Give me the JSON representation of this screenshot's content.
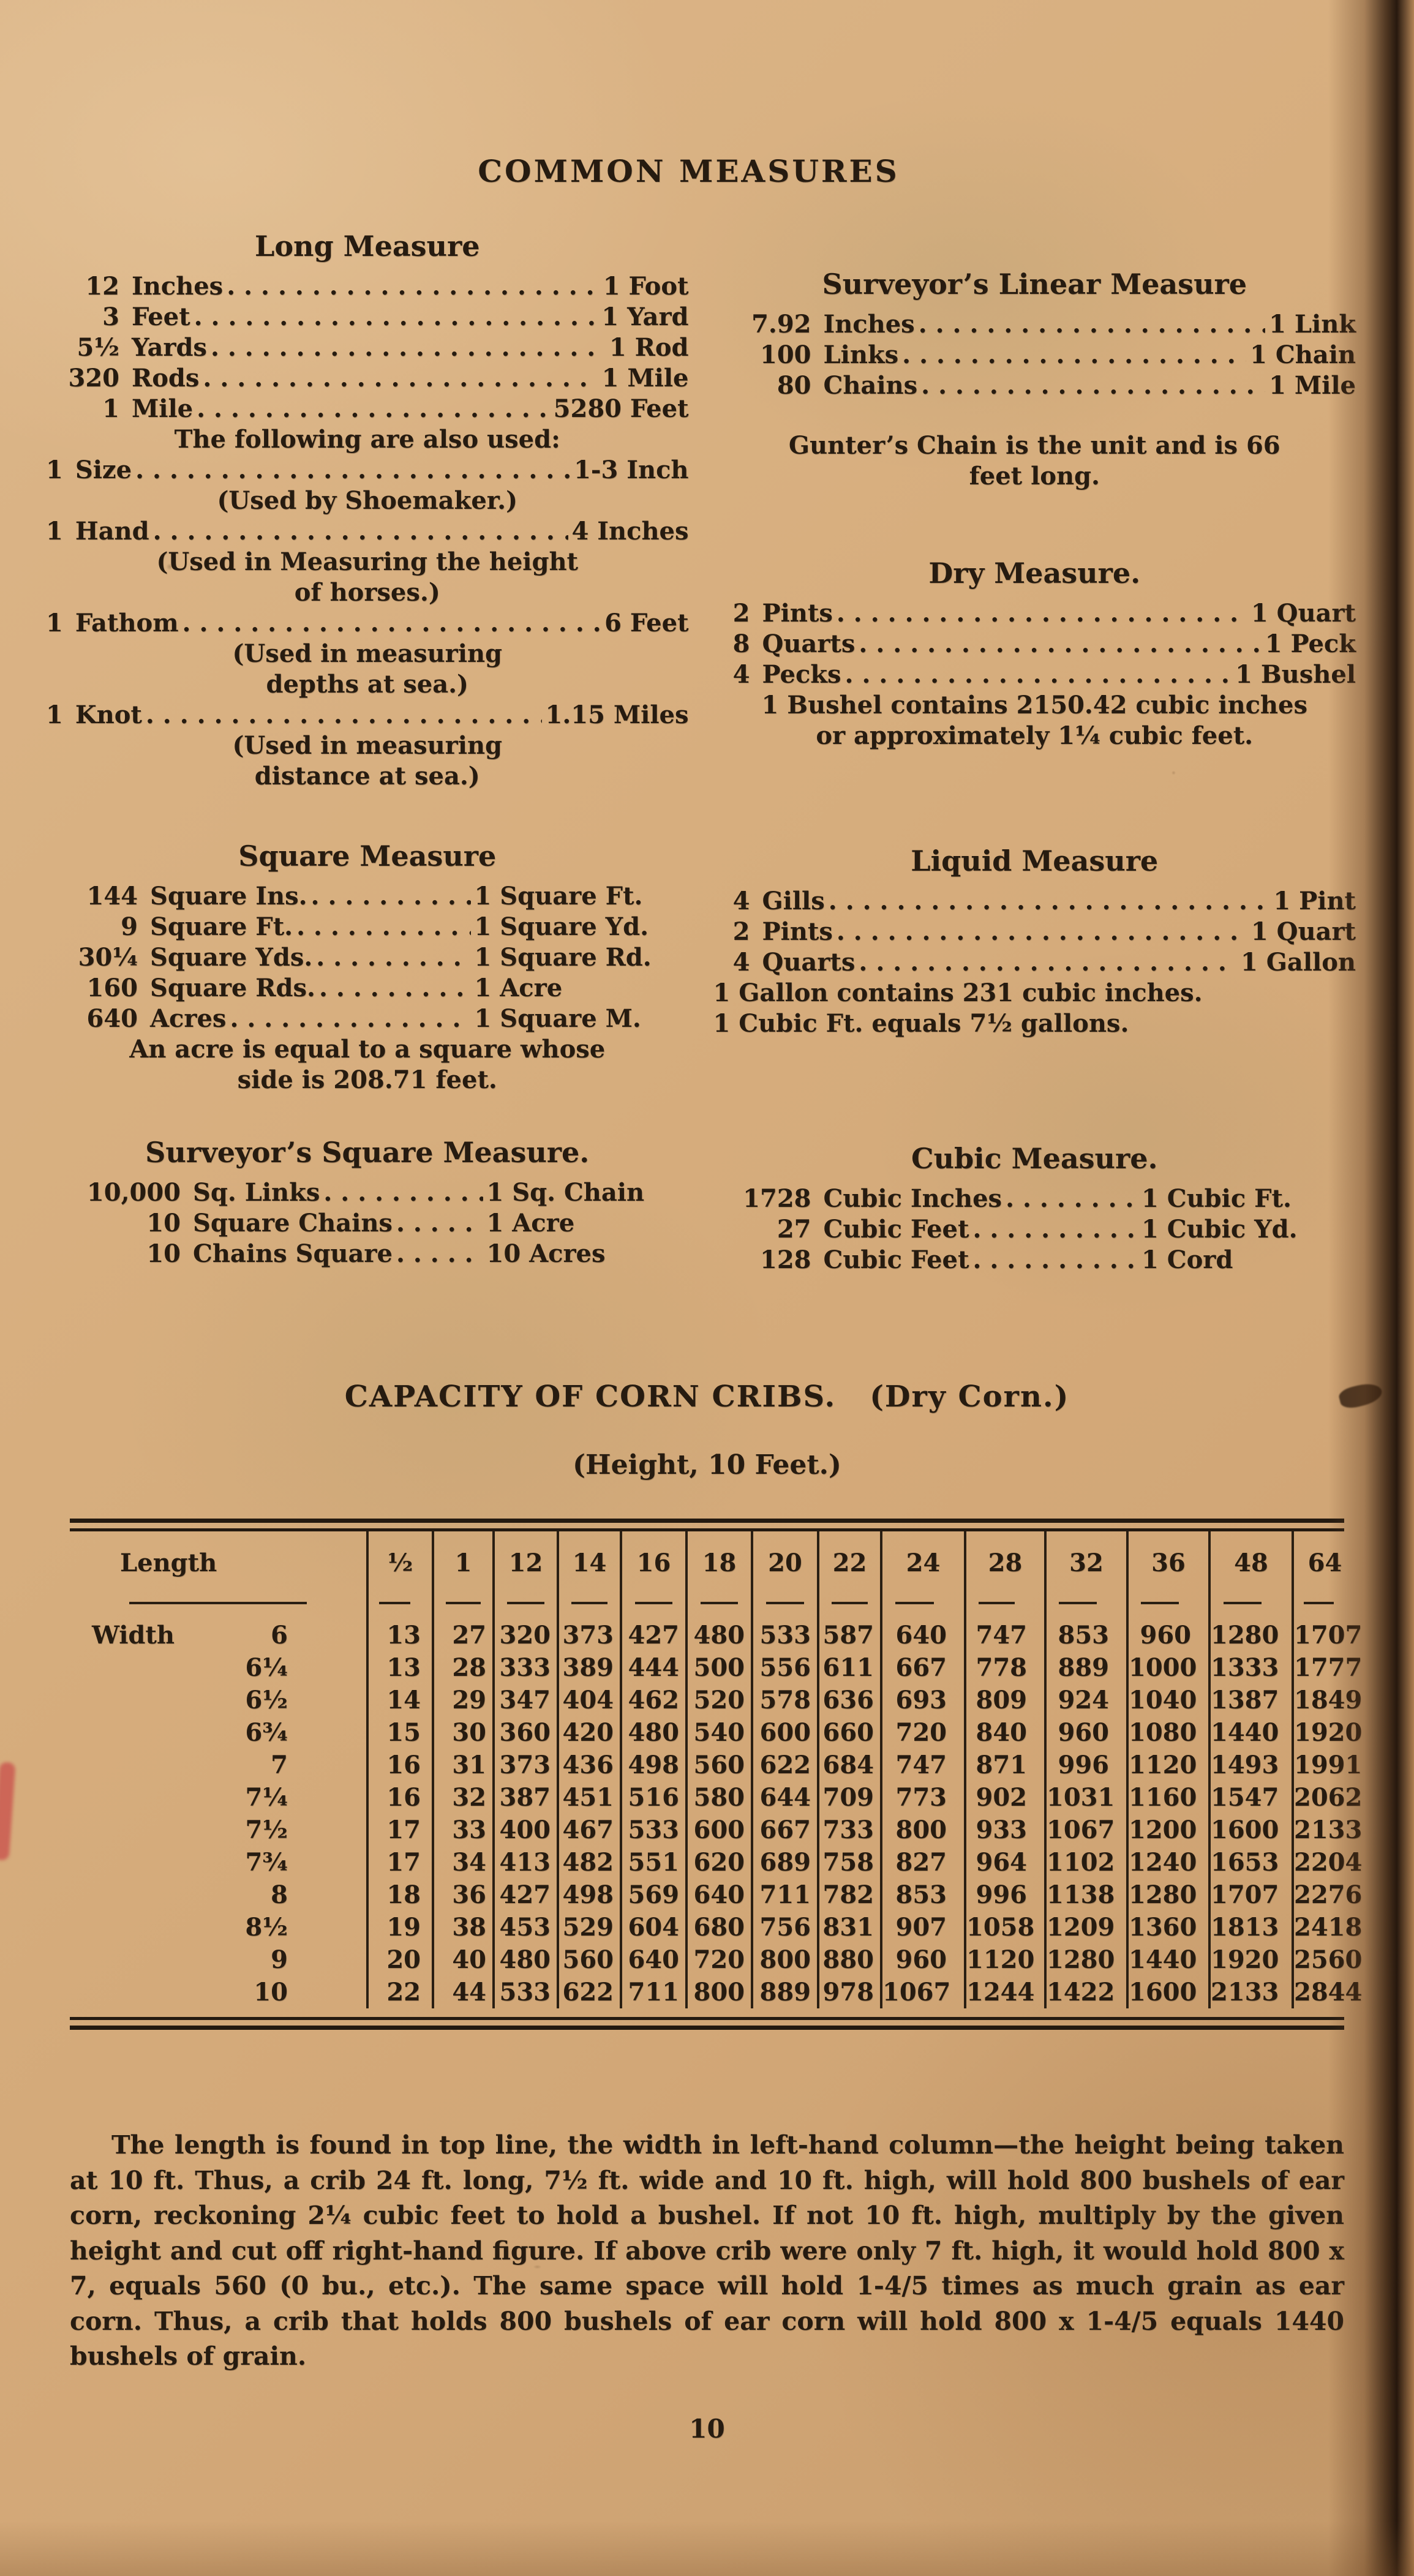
{
  "page": {
    "title": "COMMON MEASURES",
    "page_number": "10"
  },
  "columns": {
    "left": [
      {
        "id": "long",
        "heading": "Long Measure",
        "items": [
          {
            "num": "12",
            "label": "Inches",
            "value": "1 Foot"
          },
          {
            "num": "3",
            "label": "Feet",
            "value": "1 Yard"
          },
          {
            "num": "5½",
            "label": "Yards",
            "value": "1 Rod"
          },
          {
            "num": "320",
            "label": "Rods",
            "value": "1 Mile"
          },
          {
            "num": "1",
            "label": "Mile",
            "value": "5280 Feet"
          },
          {
            "note": [
              "The following are also used:"
            ],
            "align": "center"
          },
          {
            "num": "1",
            "label": "Size",
            "value": "1-3 Inch",
            "flush": true
          },
          {
            "note": [
              "(Used by Shoemaker.)"
            ],
            "align": "center"
          },
          {
            "num": "1",
            "label": "Hand",
            "value": "4 Inches",
            "flush": true
          },
          {
            "note": [
              "(Used in Measuring the height",
              "of horses.)"
            ],
            "align": "center"
          },
          {
            "num": "1",
            "label": "Fathom",
            "value": "6 Feet",
            "flush": true
          },
          {
            "note": [
              "(Used in measuring",
              "depths at sea.)"
            ],
            "align": "center"
          },
          {
            "num": "1",
            "label": "Knot",
            "value": "1.15 Miles",
            "flush": true
          },
          {
            "note": [
              "(Used in measuring",
              "distance at sea.)"
            ],
            "align": "center"
          }
        ]
      },
      {
        "id": "square",
        "heading": "Square Measure",
        "items": [
          {
            "num": "144",
            "label": "Square Ins.",
            "value": "1 Square Ft."
          },
          {
            "num": "9",
            "label": "Square Ft.",
            "value": "1 Square Yd."
          },
          {
            "num": "30¼",
            "label": "Square Yds.",
            "value": "1 Square Rd."
          },
          {
            "num": "160",
            "label": "Square Rds.",
            "value": "1 Acre"
          },
          {
            "num": "640",
            "label": "Acres",
            "value": "1 Square M."
          },
          {
            "note": [
              "An acre is equal to a square whose",
              "side is 208.71 feet."
            ],
            "align": "center"
          }
        ]
      },
      {
        "id": "surv-sq",
        "heading": "Surveyor’s Square Measure.",
        "items": [
          {
            "num": "10,000",
            "label": "Sq. Links",
            "value": "1 Sq. Chain"
          },
          {
            "num": "10",
            "label": "Square Chains",
            "value": "1 Acre"
          },
          {
            "num": "10",
            "label": "Chains Square",
            "value": "10 Acres"
          }
        ]
      }
    ],
    "right": [
      {
        "id": "linear",
        "heading": "Surveyor’s Linear Measure",
        "items": [
          {
            "num": "7.92",
            "label": "Inches",
            "value": "1 Link"
          },
          {
            "num": "100",
            "label": "Links",
            "value": "1 Chain"
          },
          {
            "num": "80",
            "label": "Chains",
            "value": "1 Mile"
          },
          {
            "note": [
              "Gunter’s Chain is the unit and is 66",
              "feet long."
            ],
            "align": "center"
          }
        ]
      },
      {
        "id": "dry",
        "heading": "Dry Measure.",
        "items": [
          {
            "num": "2",
            "label": "Pints",
            "value": "1 Quart"
          },
          {
            "num": "8",
            "label": "Quarts",
            "value": "1 Peck"
          },
          {
            "num": "4",
            "label": "Pecks",
            "value": "1 Bushel"
          },
          {
            "note": [
              "1 Bushel contains 2150.42 cubic inches",
              "or approximately 1¼ cubic feet."
            ],
            "align": "center"
          }
        ]
      },
      {
        "id": "liquid",
        "heading": "Liquid Measure",
        "items": [
          {
            "num": "4",
            "label": "Gills",
            "value": "1 Pint"
          },
          {
            "num": "2",
            "label": "Pints",
            "value": "1 Quart"
          },
          {
            "num": "4",
            "label": "Quarts",
            "value": "1 Gallon"
          },
          {
            "note": [
              "1 Gallon contains 231 cubic inches.",
              "1 Cubic Ft. equals 7½ gallons."
            ],
            "align": "left"
          }
        ]
      },
      {
        "id": "cubic",
        "heading": "Cubic Measure.",
        "items": [
          {
            "num": "1728",
            "label": "Cubic Inches",
            "value": "1 Cubic Ft."
          },
          {
            "num": "27",
            "label": "Cubic Feet",
            "value": "1 Cubic Yd."
          },
          {
            "num": "128",
            "label": "Cubic Feet",
            "value": "1 Cord"
          }
        ]
      }
    ]
  },
  "corn_cribs": {
    "title": "CAPACITY OF CORN CRIBS.",
    "title_suffix": "(Dry Corn.)",
    "subtitle": "(Height, 10 Feet.)",
    "table": {
      "row_label_prefix": "Width",
      "columns": [
        "Length",
        "½",
        "1",
        "12",
        "14",
        "16",
        "18",
        "20",
        "22",
        "24",
        "28",
        "32",
        "36",
        "48",
        "64"
      ],
      "rows": [
        {
          "width": "6",
          "values": [
            13,
            27,
            320,
            373,
            427,
            480,
            533,
            587,
            640,
            747,
            853,
            960,
            1280,
            1707
          ]
        },
        {
          "width": "6¼",
          "values": [
            13,
            28,
            333,
            389,
            444,
            500,
            556,
            611,
            667,
            778,
            889,
            1000,
            1333,
            1777
          ]
        },
        {
          "width": "6½",
          "values": [
            14,
            29,
            347,
            404,
            462,
            520,
            578,
            636,
            693,
            809,
            924,
            1040,
            1387,
            1849
          ]
        },
        {
          "width": "6¾",
          "values": [
            15,
            30,
            360,
            420,
            480,
            540,
            600,
            660,
            720,
            840,
            960,
            1080,
            1440,
            1920
          ]
        },
        {
          "width": "7",
          "values": [
            16,
            31,
            373,
            436,
            498,
            560,
            622,
            684,
            747,
            871,
            996,
            1120,
            1493,
            1991
          ]
        },
        {
          "width": "7¼",
          "values": [
            16,
            32,
            387,
            451,
            516,
            580,
            644,
            709,
            773,
            902,
            1031,
            1160,
            1547,
            2062
          ]
        },
        {
          "width": "7½",
          "values": [
            17,
            33,
            400,
            467,
            533,
            600,
            667,
            733,
            800,
            933,
            1067,
            1200,
            1600,
            2133
          ]
        },
        {
          "width": "7¾",
          "values": [
            17,
            34,
            413,
            482,
            551,
            620,
            689,
            758,
            827,
            964,
            1102,
            1240,
            1653,
            2204
          ]
        },
        {
          "width": "8",
          "values": [
            18,
            36,
            427,
            498,
            569,
            640,
            711,
            782,
            853,
            996,
            1138,
            1280,
            1707,
            2276
          ]
        },
        {
          "width": "8½",
          "values": [
            19,
            38,
            453,
            529,
            604,
            680,
            756,
            831,
            907,
            1058,
            1209,
            1360,
            1813,
            2418
          ]
        },
        {
          "width": "9",
          "values": [
            20,
            40,
            480,
            560,
            640,
            720,
            800,
            880,
            960,
            1120,
            1280,
            1440,
            1920,
            2560
          ]
        },
        {
          "width": "10",
          "values": [
            22,
            44,
            533,
            622,
            711,
            800,
            889,
            978,
            1067,
            1244,
            1422,
            1600,
            2133,
            2844
          ]
        }
      ]
    },
    "footnote": "The length is found in top line, the width in left-hand column—the height being taken at 10 ft.  Thus, a crib 24 ft. long, 7½ ft. wide and 10 ft. high, will hold 800 bushels of ear corn, reckoning 2¼ cubic feet to hold a bushel.  If not 10 ft. high, multiply by the given height and cut off right-hand figure.  If above crib were only 7 ft. high, it would hold 800 x 7, equals 560 (0 bu., etc.).  The same space will hold 1-4/5 times as much grain as ear corn.  Thus, a crib that holds 800 bushels of ear corn will hold 800 x 1-4/5 equals 1440 bushels of grain."
  }
}
